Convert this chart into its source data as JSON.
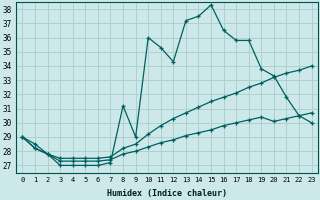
{
  "xlabel": "Humidex (Indice chaleur)",
  "bg_color": "#cce8e8",
  "grid_color": "#b0d0d0",
  "line_color": "#006060",
  "xlim": [
    -0.5,
    23.5
  ],
  "ylim": [
    26.5,
    38.5
  ],
  "yticks": [
    27,
    28,
    29,
    30,
    31,
    32,
    33,
    34,
    35,
    36,
    37,
    38
  ],
  "xticks": [
    0,
    1,
    2,
    3,
    4,
    5,
    6,
    7,
    8,
    9,
    10,
    11,
    12,
    13,
    14,
    15,
    16,
    17,
    18,
    19,
    20,
    21,
    22,
    23
  ],
  "line1_y": [
    29.0,
    28.5,
    27.8,
    27.0,
    27.0,
    27.0,
    27.0,
    27.2,
    31.2,
    29.0,
    36.0,
    35.3,
    34.3,
    37.2,
    37.5,
    38.3,
    36.5,
    35.8,
    35.8,
    33.8,
    33.3,
    31.8,
    30.5,
    30.0
  ],
  "line2_y": [
    29.0,
    28.2,
    27.8,
    27.5,
    27.5,
    27.5,
    27.5,
    27.6,
    28.2,
    28.5,
    29.2,
    29.8,
    30.3,
    30.7,
    31.1,
    31.5,
    31.8,
    32.1,
    32.5,
    32.8,
    33.2,
    33.5,
    33.7,
    34.0
  ],
  "line3_y": [
    29.0,
    28.2,
    27.8,
    27.3,
    27.3,
    27.3,
    27.3,
    27.4,
    27.8,
    28.0,
    28.3,
    28.6,
    28.8,
    29.1,
    29.3,
    29.5,
    29.8,
    30.0,
    30.2,
    30.4,
    30.1,
    30.3,
    30.5,
    30.7
  ]
}
